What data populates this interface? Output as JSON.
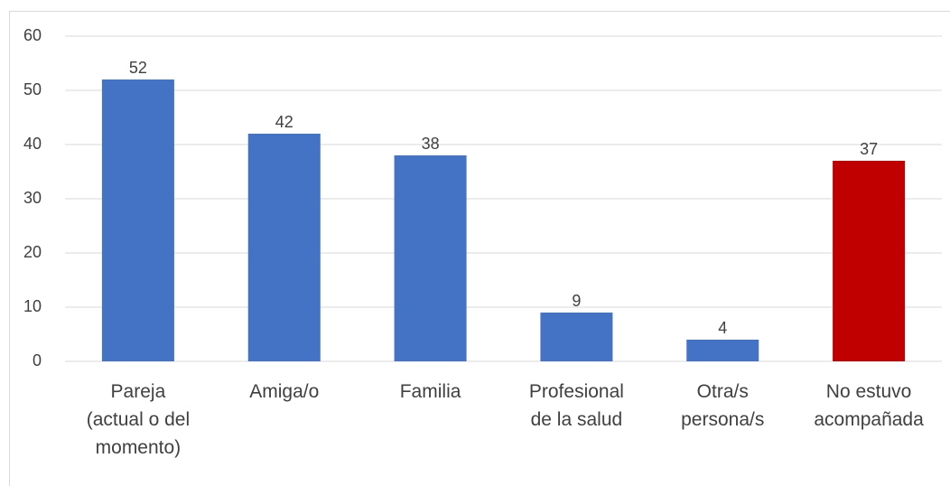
{
  "chart_data": {
    "type": "bar",
    "categories": [
      "Pareja (actual o del momento)",
      "Amiga/o",
      "Familia",
      "Profesional de la salud",
      "Otra/s persona/s",
      "No estuvo acompañada"
    ],
    "values": [
      52,
      42,
      38,
      9,
      4,
      37
    ],
    "colors": [
      "#4472c4",
      "#4472c4",
      "#4472c4",
      "#4472c4",
      "#4472c4",
      "#c00000"
    ],
    "ylim": [
      0,
      60
    ],
    "yticks": [
      0,
      10,
      20,
      30,
      40,
      50,
      60
    ],
    "grid": true
  }
}
